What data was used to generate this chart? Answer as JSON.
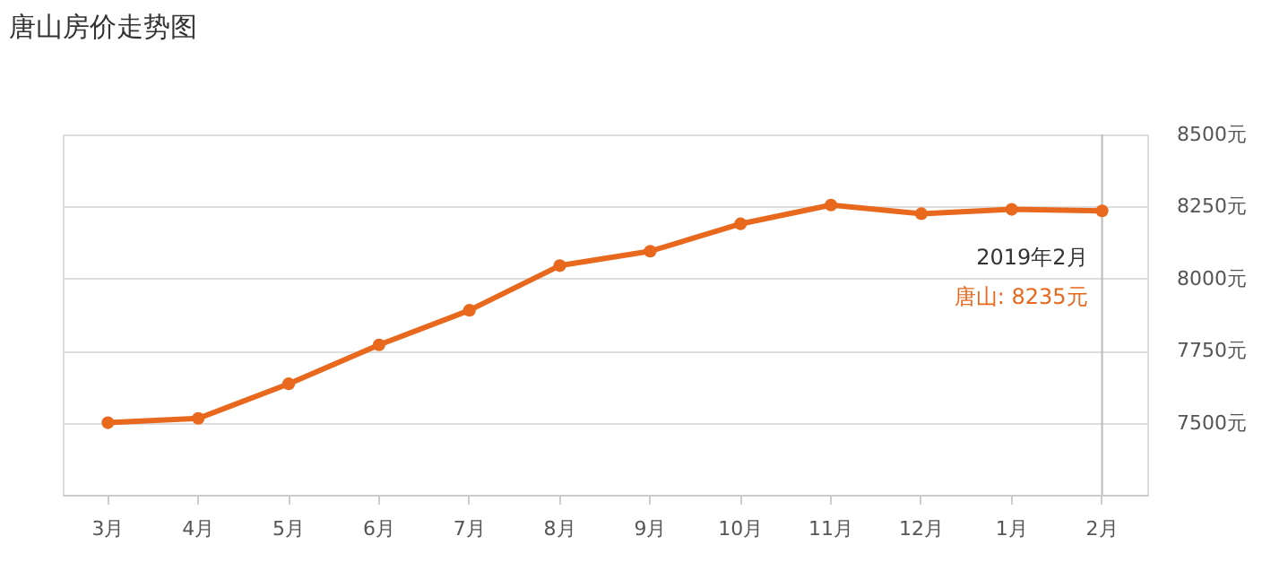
{
  "chart_data": {
    "type": "line",
    "title": "唐山房价走势图",
    "categories": [
      "3月",
      "4月",
      "5月",
      "6月",
      "7月",
      "8月",
      "9月",
      "10月",
      "11月",
      "12月",
      "1月",
      "2月"
    ],
    "series": [
      {
        "name": "唐山:",
        "color": "#e8681e",
        "values": [
          7500,
          7515,
          7635,
          7770,
          7890,
          8045,
          8095,
          8190,
          8255,
          8225,
          8240,
          8235
        ],
        "value_labels": [
          null,
          null,
          null,
          null,
          null,
          null,
          null,
          null,
          null,
          null,
          null,
          "8235元"
        ]
      }
    ],
    "ylim": [
      7250,
      8500
    ],
    "yticks": [
      {
        "value": 7500,
        "label": "7500元"
      },
      {
        "value": 7750,
        "label": "7750元"
      },
      {
        "value": 8000,
        "label": "8000元"
      },
      {
        "value": 8250,
        "label": "8250元"
      },
      {
        "value": 8500,
        "label": "8500元"
      }
    ],
    "grid": "y",
    "marker": "circle",
    "line_style": "solid",
    "ref_lines": [
      {
        "axis": "x",
        "value": "2月",
        "color": "#bbbbbb"
      }
    ],
    "annotations": [
      "2019年2月"
    ]
  }
}
